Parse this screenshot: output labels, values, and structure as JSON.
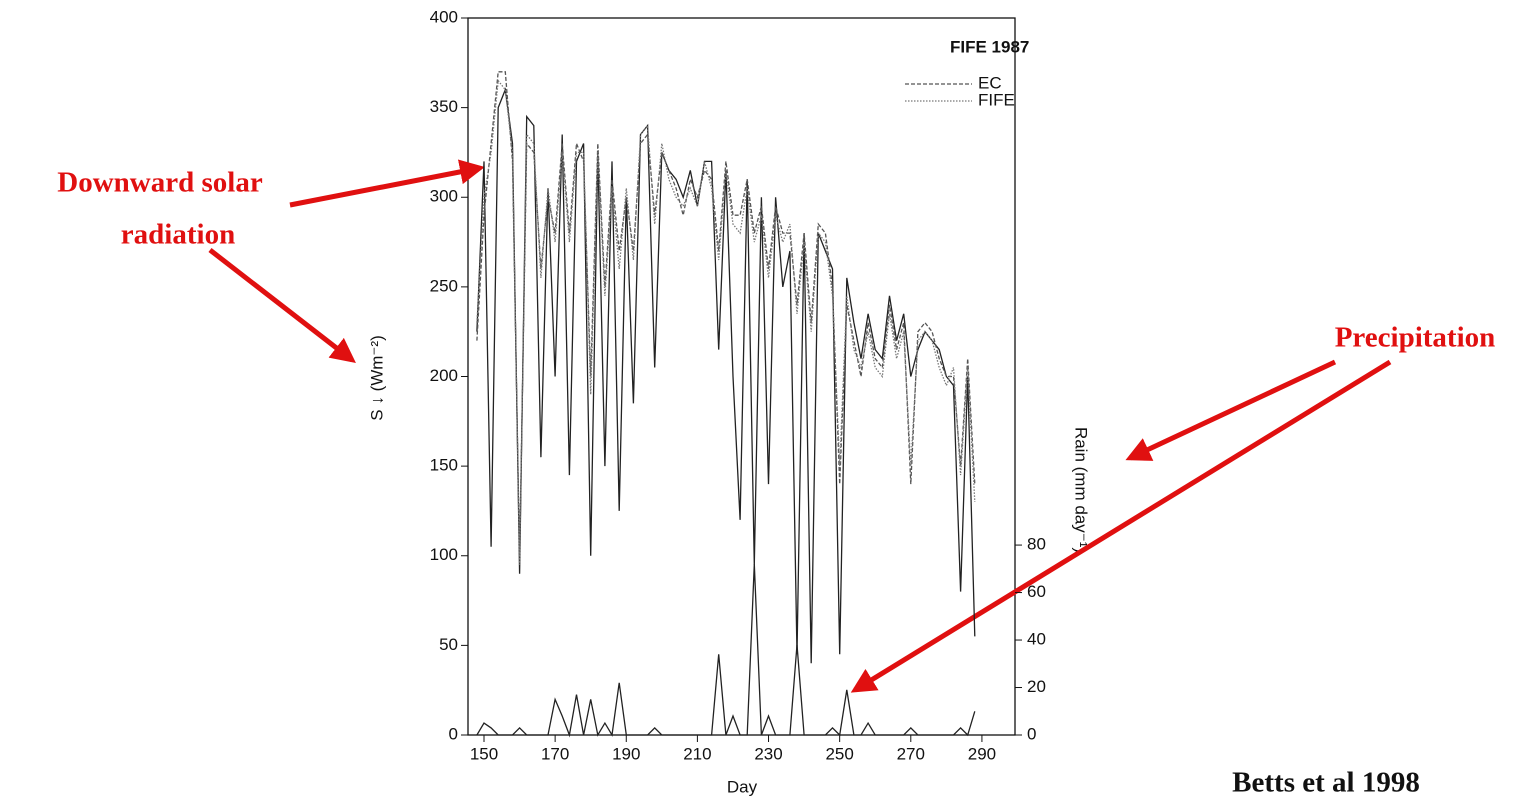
{
  "chart_data": {
    "type": "line",
    "title": "FIFE 1987",
    "x_label": "Day",
    "y_label": "S ↓  (Wm⁻²)",
    "y2_label": "Rain (mm day⁻¹)",
    "x": [
      148,
      150,
      152,
      154,
      156,
      158,
      160,
      162,
      164,
      166,
      168,
      170,
      172,
      174,
      176,
      178,
      180,
      182,
      184,
      186,
      188,
      190,
      192,
      194,
      196,
      198,
      200,
      202,
      204,
      206,
      208,
      210,
      212,
      214,
      216,
      218,
      220,
      222,
      224,
      226,
      228,
      230,
      232,
      234,
      236,
      238,
      240,
      242,
      244,
      246,
      248,
      250,
      252,
      254,
      256,
      258,
      260,
      262,
      264,
      266,
      268,
      270,
      272,
      274,
      276,
      278,
      280,
      282,
      284,
      286,
      288
    ],
    "xlim": [
      145.5,
      299.3
    ],
    "xticks": [
      150,
      170,
      190,
      210,
      230,
      250,
      270,
      290
    ],
    "ylim": [
      0,
      400
    ],
    "yticks": [
      0,
      50,
      100,
      150,
      200,
      250,
      300,
      350,
      400
    ],
    "y2lim": [
      0,
      302
    ],
    "y2ticks": [
      0,
      20,
      40,
      60,
      80
    ],
    "series": [
      {
        "color": "#222222",
        "dash": "none",
        "values": [
          225,
          320,
          105,
          350,
          360,
          330,
          90,
          345,
          340,
          155,
          305,
          200,
          335,
          145,
          320,
          330,
          100,
          325,
          150,
          320,
          125,
          300,
          185,
          335,
          340,
          205,
          325,
          315,
          310,
          300,
          315,
          295,
          320,
          320,
          215,
          315,
          200,
          120,
          310,
          95,
          300,
          140,
          300,
          250,
          270,
          45,
          280,
          40,
          280,
          270,
          260,
          45,
          255,
          230,
          210,
          235,
          215,
          210,
          245,
          220,
          235,
          200,
          215,
          225,
          220,
          215,
          200,
          195,
          80,
          200,
          55
        ]
      },
      {
        "name": "EC",
        "color": "#555555",
        "dash": "4,2",
        "values": [
          220,
          290,
          330,
          370,
          370,
          320,
          100,
          330,
          325,
          260,
          300,
          280,
          330,
          280,
          330,
          320,
          200,
          330,
          250,
          310,
          270,
          300,
          270,
          330,
          335,
          290,
          325,
          315,
          305,
          290,
          310,
          300,
          315,
          310,
          270,
          320,
          290,
          290,
          310,
          280,
          295,
          260,
          295,
          280,
          280,
          240,
          280,
          230,
          285,
          280,
          250,
          140,
          240,
          220,
          200,
          230,
          210,
          205,
          240,
          215,
          230,
          140,
          225,
          230,
          225,
          210,
          200,
          200,
          150,
          210,
          140
        ]
      },
      {
        "name": "FIFE",
        "color": "#777777",
        "dash": "1.5,1.5",
        "values": [
          230,
          300,
          325,
          365,
          360,
          325,
          95,
          335,
          330,
          255,
          305,
          275,
          325,
          275,
          325,
          325,
          190,
          325,
          245,
          305,
          260,
          305,
          265,
          335,
          340,
          285,
          330,
          310,
          300,
          295,
          305,
          295,
          320,
          305,
          265,
          315,
          285,
          280,
          305,
          275,
          290,
          255,
          290,
          275,
          285,
          235,
          275,
          225,
          280,
          275,
          245,
          150,
          245,
          215,
          205,
          225,
          205,
          200,
          235,
          210,
          225,
          150,
          220,
          225,
          220,
          205,
          195,
          205,
          145,
          205,
          130
        ]
      },
      {
        "axis": "y2",
        "color": "#222222",
        "dash": "none",
        "values": [
          0,
          5,
          3,
          0,
          0,
          0,
          3,
          0,
          0,
          0,
          0,
          15,
          8,
          0,
          17,
          0,
          15,
          0,
          5,
          0,
          22,
          0,
          0,
          0,
          0,
          3,
          0,
          0,
          0,
          0,
          0,
          0,
          0,
          0,
          34,
          0,
          8,
          0,
          0,
          72,
          0,
          8,
          0,
          0,
          0,
          38,
          0,
          0,
          0,
          0,
          3,
          0,
          19,
          0,
          0,
          5,
          0,
          0,
          0,
          0,
          0,
          3,
          0,
          0,
          0,
          0,
          0,
          0,
          3,
          0,
          10
        ]
      }
    ],
    "annotations": {
      "solar": [
        "Downward solar",
        "radiation"
      ],
      "precip": "Precipitation",
      "source": "Betts et al 1998"
    }
  }
}
